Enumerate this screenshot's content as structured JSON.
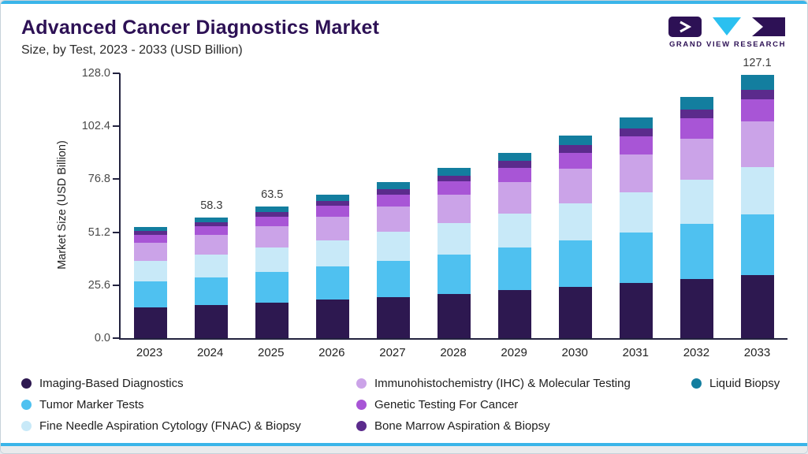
{
  "header": {
    "title": "Advanced Cancer Diagnostics Market",
    "subtitle": "Size, by Test, 2023 - 2033 (USD Billion)",
    "brand": "GRAND VIEW RESEARCH"
  },
  "colors": {
    "accent_line": "#3ab5e9",
    "title_text": "#2d1155",
    "axis": "#23233f"
  },
  "chart_data": {
    "type": "bar",
    "stacked": true,
    "title": "Advanced Cancer Diagnostics Market Size, by Test, 2023 - 2033 (USD Billion)",
    "xlabel": "",
    "ylabel": "Market Size (USD Billion)",
    "ylim": [
      0,
      128
    ],
    "ytick_labels": [
      "0.0",
      "25.6",
      "51.2",
      "76.8",
      "102.4",
      "128.0"
    ],
    "grid": false,
    "legend_position": "bottom",
    "categories": [
      "2023",
      "2024",
      "2025",
      "2026",
      "2027",
      "2028",
      "2029",
      "2030",
      "2031",
      "2032",
      "2033"
    ],
    "series": [
      {
        "name": "Imaging-Based Diagnostics",
        "color": "#2d1850",
        "legend": {
          "row": 1,
          "col": 1
        },
        "values": [
          15.0,
          16.1,
          17.3,
          18.6,
          20.0,
          21.5,
          23.1,
          24.8,
          26.6,
          28.5,
          30.5
        ]
      },
      {
        "name": "Tumor Marker Tests",
        "color": "#4fc1f0",
        "legend": {
          "row": 2,
          "col": 1
        },
        "values": [
          12.3,
          13.4,
          14.6,
          15.9,
          17.3,
          18.9,
          20.6,
          22.5,
          24.6,
          26.9,
          29.4
        ]
      },
      {
        "name": "Fine Needle Aspiration Cytology (FNAC) & Biopsy",
        "color": "#c8e9f8",
        "legend": {
          "row": 3,
          "col": 1
        },
        "values": [
          10.2,
          11.0,
          11.9,
          12.9,
          14.0,
          15.2,
          16.5,
          17.9,
          19.4,
          21.0,
          22.8
        ]
      },
      {
        "name": "Immunohistochemistry (IHC) & Molecular Testing",
        "color": "#cba3e8",
        "legend": {
          "row": 1,
          "col": 2
        },
        "values": [
          8.6,
          9.4,
          10.3,
          11.3,
          12.4,
          13.7,
          15.1,
          16.6,
          18.2,
          20.0,
          22.0
        ]
      },
      {
        "name": "Genetic Testing For Cancer",
        "color": "#a855d6",
        "legend": {
          "row": 2,
          "col": 2
        },
        "values": [
          3.8,
          4.2,
          4.7,
          5.2,
          5.8,
          6.4,
          7.1,
          7.9,
          8.8,
          9.8,
          10.9
        ]
      },
      {
        "name": "Bone Marrow Aspiration & Biopsy",
        "color": "#5b2b8c",
        "legend": {
          "row": 3,
          "col": 2
        },
        "values": [
          1.9,
          2.1,
          2.3,
          2.5,
          2.7,
          2.9,
          3.2,
          3.5,
          3.8,
          4.2,
          4.6
        ]
      },
      {
        "name": "Liquid Biopsy",
        "color": "#137e9f",
        "legend": {
          "row": 1,
          "col": 3
        },
        "values": [
          1.8,
          2.1,
          2.4,
          2.8,
          3.2,
          3.6,
          4.1,
          4.7,
          5.4,
          6.2,
          6.9
        ]
      }
    ],
    "totals": [
      53.6,
      58.3,
      63.5,
      69.2,
      75.4,
      82.2,
      89.7,
      97.9,
      106.8,
      116.6,
      127.1
    ],
    "annotations": [
      {
        "category": "2024",
        "label": "58.3"
      },
      {
        "category": "2025",
        "label": "63.5"
      },
      {
        "category": "2033",
        "label": "127.1"
      }
    ]
  }
}
